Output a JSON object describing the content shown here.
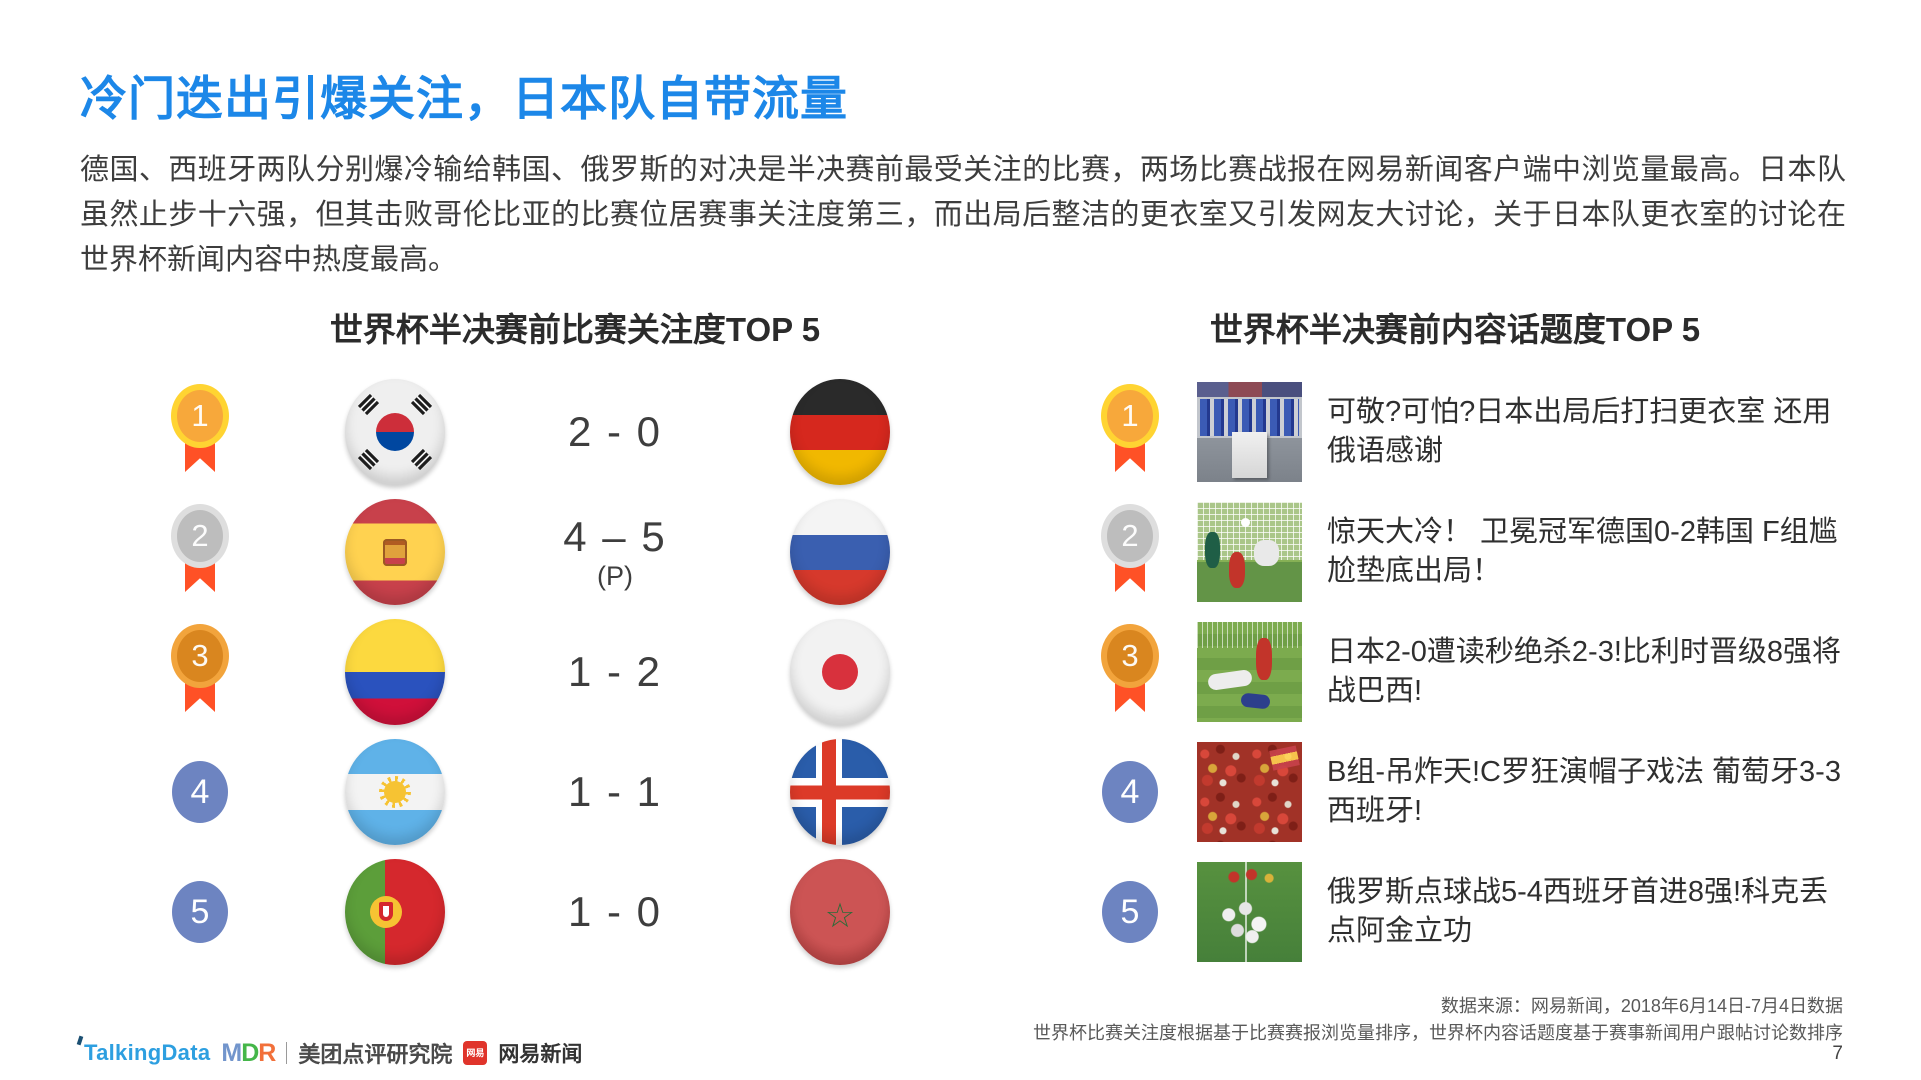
{
  "slide": {
    "title": "冷门迭出引爆关注，日本队自带流量",
    "paragraph": "德国、西班牙两队分别爆冷输给韩国、俄罗斯的对决是半决赛前最受关注的比赛，两场比赛战报在网易新闻客户端中浏览量最高。日本队虽然止步十六强，但其击败哥伦比亚的比赛位居赛事关注度第三，而出局后整洁的更衣室又引发网友大讨论，关于日本队更衣室的讨论在世界杯新闻内容中热度最高。",
    "page_number": "7"
  },
  "left_panel": {
    "title": "世界杯半决赛前比赛关注度TOP 5",
    "rows": [
      {
        "rank": "1",
        "team_left": "South Korea",
        "score": "2 - 0",
        "score_note": "",
        "team_right": "Germany"
      },
      {
        "rank": "2",
        "team_left": "Spain",
        "score": "4 – 5",
        "score_note": "(P)",
        "team_right": "Russia"
      },
      {
        "rank": "3",
        "team_left": "Colombia",
        "score": "1 - 2",
        "score_note": "",
        "team_right": "Japan"
      },
      {
        "rank": "4",
        "team_left": "Argentina",
        "score": "1 - 1",
        "score_note": "",
        "team_right": "Iceland"
      },
      {
        "rank": "5",
        "team_left": "Portugal",
        "score": "1 - 0",
        "score_note": "",
        "team_right": "Morocco"
      }
    ]
  },
  "right_panel": {
    "title": "世界杯半决赛前内容话题度TOP 5",
    "rows": [
      {
        "rank": "1",
        "thumbnail": "japan-locker-room-photo",
        "headline": "可敬?可怕?日本出局后打扫更衣室 还用俄语感谢"
      },
      {
        "rank": "2",
        "thumbnail": "germany-korea-goal-photo",
        "headline": "惊天大冷！ 卫冕冠军德国0-2韩国 F组尴尬垫底出局！"
      },
      {
        "rank": "3",
        "thumbnail": "japan-belgium-players-photo",
        "headline": "日本2-0遭读秒绝杀2-3!比利时晋级8强将战巴西!"
      },
      {
        "rank": "4",
        "thumbnail": "portugal-spain-fans-photo",
        "headline": "B组-吊炸天!C罗狂演帽子戏法 葡萄牙3-3西班牙!"
      },
      {
        "rank": "5",
        "thumbnail": "russia-celebration-photo",
        "headline": "俄罗斯点球战5-4西班牙首进8强!科克丢点阿金立功"
      }
    ]
  },
  "footer": {
    "source_line1": "数据来源：网易新闻，2018年6月14日-7月4日数据",
    "source_line2": "世界杯比赛关注度根据基于比赛赛报浏览量排序，世界杯内容话题度基于赛事新闻用户跟帖讨论数排序",
    "logos": {
      "talkingdata": "TalkingData",
      "mdr_m": "M",
      "mdr_d": "D",
      "mdr_r": "R",
      "meituan": "美团点评研究院",
      "netease_badge": "网易",
      "netease": "网易新闻"
    }
  },
  "colors": {
    "title_blue": "#1c87e8",
    "rank_blue": "#6d84c1",
    "medal_gold": "#ffd432",
    "medal_silver": "#dedede",
    "medal_bronze": "#f2a43c",
    "ribbon_orange": "#ff5126"
  }
}
